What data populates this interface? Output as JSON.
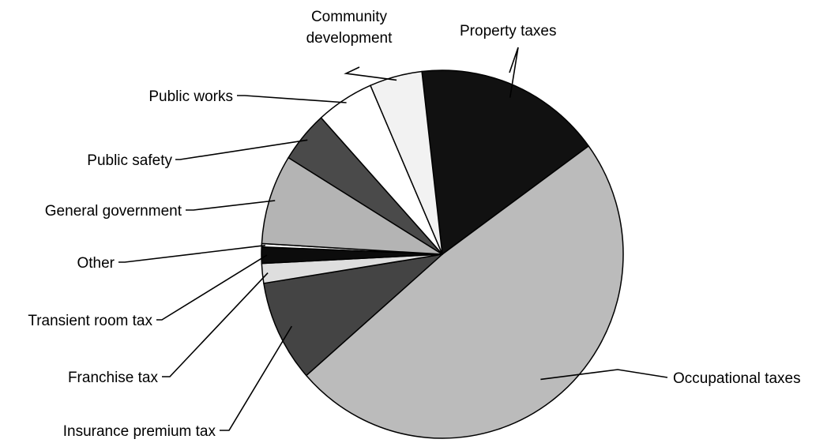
{
  "chart_data": {
    "type": "pie",
    "title": "",
    "slices": [
      {
        "label": "Property taxes",
        "value": 17.5,
        "color": "#111111"
      },
      {
        "label": "Occupational taxes",
        "value": 50.6,
        "color": "#bbbbbb"
      },
      {
        "label": "Insurance premium tax",
        "value": 9.3,
        "color": "#444444"
      },
      {
        "label": "Franchise tax",
        "value": 1.8,
        "color": "#dedede"
      },
      {
        "label": "Transient room tax",
        "value": 1.5,
        "color": "#0c0c0c"
      },
      {
        "label": "Other",
        "value": 0.3,
        "color": "#ffffff"
      },
      {
        "label": "General government",
        "value": 8.2,
        "color": "#b4b4b4"
      },
      {
        "label": "Public safety",
        "value": 4.7,
        "color": "#4a4a4a"
      },
      {
        "label": "Public works",
        "value": 5.4,
        "color": "#ffffff"
      },
      {
        "label": "Community development",
        "value": 4.9,
        "color": "#f2f2f2"
      }
    ],
    "label_lines": {
      "Community development": [
        "Community",
        "development"
      ]
    },
    "legend": "none"
  }
}
